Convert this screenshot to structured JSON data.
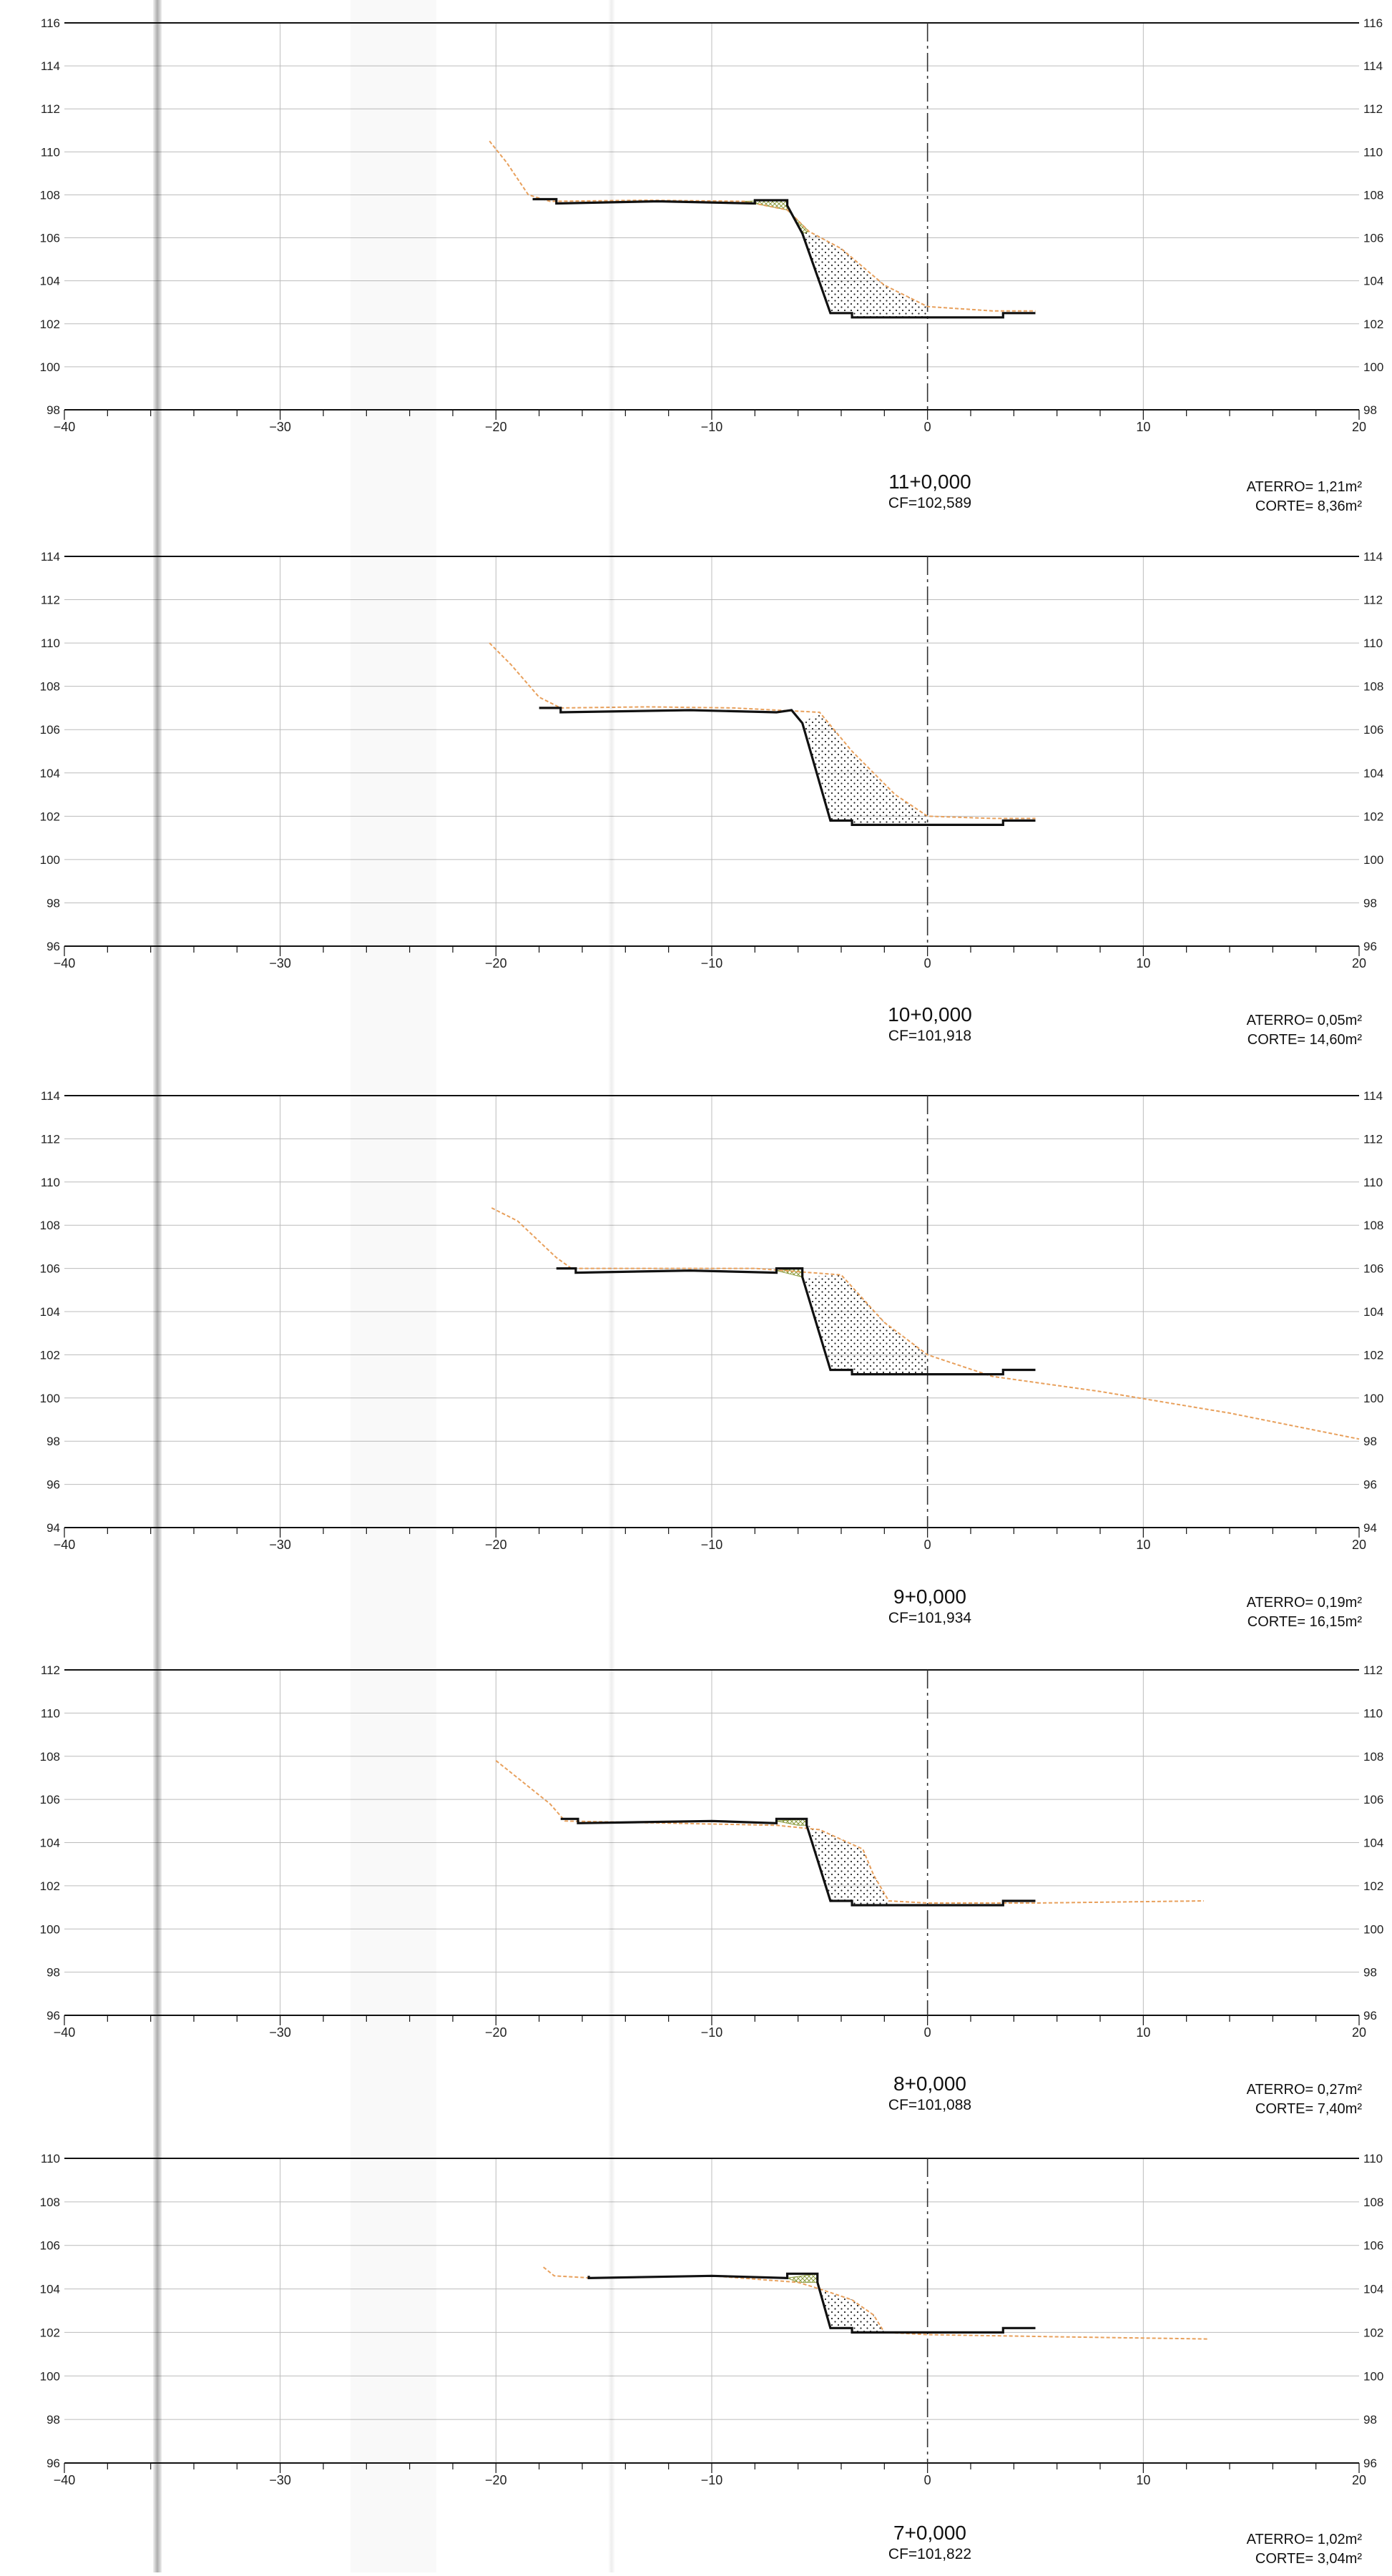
{
  "chart_data": [
    {
      "type": "line",
      "xlim": [
        -40,
        20
      ],
      "ylim": [
        98,
        116
      ],
      "x_ticks": [
        "−40",
        "−30",
        "−20",
        "−10",
        "0",
        "10",
        "20"
      ],
      "y_ticks": [
        "98",
        "100",
        "102",
        "104",
        "106",
        "108",
        "110",
        "112",
        "114",
        "116"
      ],
      "section": "11+0,000",
      "cf": "CF=102,589",
      "aterro": "ATERRO=  1,21m²",
      "corte": "CORTE=  8,36m²",
      "series": [
        {
          "kind": "terrain",
          "points": [
            [
              -20.3,
              110.5
            ],
            [
              -19.5,
              109.5
            ],
            [
              -18.5,
              108.0
            ],
            [
              -17.5,
              107.7
            ],
            [
              -13,
              107.75
            ],
            [
              -8.5,
              107.7
            ],
            [
              -6.5,
              107.3
            ],
            [
              -5.5,
              106.3
            ],
            [
              -4,
              105.5
            ],
            [
              -2,
              103.8
            ],
            [
              0,
              102.8
            ],
            [
              3,
              102.6
            ],
            [
              5,
              102.6
            ]
          ]
        },
        {
          "kind": "project",
          "points": [
            [
              -18.3,
              107.8
            ],
            [
              -17.2,
              107.8
            ],
            [
              -17.2,
              107.6
            ],
            [
              -12.5,
              107.7
            ],
            [
              -8,
              107.6
            ],
            [
              -8,
              107.75
            ],
            [
              -6.5,
              107.75
            ],
            [
              -6.5,
              107.5
            ],
            [
              -5.8,
              106.2
            ],
            [
              -4.5,
              102.5
            ],
            [
              -3.5,
              102.5
            ],
            [
              -3.5,
              102.3
            ],
            [
              3.5,
              102.3
            ],
            [
              3.5,
              102.5
            ],
            [
              5,
              102.5
            ]
          ]
        }
      ],
      "fill_area": [
        [
          -8.5,
          107.7
        ],
        [
          -6.5,
          107.75
        ],
        [
          -6.5,
          107.5
        ],
        [
          -5.8,
          106.2
        ],
        [
          -5.5,
          106.3
        ],
        [
          -6.5,
          107.3
        ]
      ],
      "cut_area": [
        [
          -5.8,
          106.2
        ],
        [
          -4.5,
          102.5
        ],
        [
          -3.5,
          102.5
        ],
        [
          -3.5,
          102.3
        ],
        [
          0,
          102.3
        ],
        [
          0,
          102.8
        ],
        [
          -2,
          103.8
        ],
        [
          -4,
          105.5
        ],
        [
          -5.5,
          106.3
        ]
      ]
    },
    {
      "type": "line",
      "xlim": [
        -40,
        20
      ],
      "ylim": [
        96,
        114
      ],
      "x_ticks": [
        "−40",
        "−30",
        "−20",
        "−10",
        "0",
        "10",
        "20"
      ],
      "y_ticks": [
        "96",
        "98",
        "100",
        "102",
        "104",
        "106",
        "108",
        "110",
        "112",
        "114"
      ],
      "section": "10+0,000",
      "cf": "CF=101,918",
      "aterro": "ATERRO=  0,05m²",
      "corte": "CORTE=  14,60m²",
      "series": [
        {
          "kind": "terrain",
          "points": [
            [
              -20.3,
              110.0
            ],
            [
              -19.3,
              109.0
            ],
            [
              -18,
              107.5
            ],
            [
              -17,
              107.0
            ],
            [
              -13,
              107.05
            ],
            [
              -9,
              107.0
            ],
            [
              -5,
              106.8
            ],
            [
              -3.5,
              105.0
            ],
            [
              -1.5,
              103.0
            ],
            [
              0,
              102.0
            ],
            [
              3,
              101.9
            ],
            [
              5,
              101.9
            ]
          ]
        },
        {
          "kind": "project",
          "points": [
            [
              -18,
              107.0
            ],
            [
              -17,
              107.0
            ],
            [
              -17,
              106.8
            ],
            [
              -11,
              106.9
            ],
            [
              -7,
              106.8
            ],
            [
              -6.3,
              106.9
            ],
            [
              -5.8,
              106.3
            ],
            [
              -4.5,
              101.8
            ],
            [
              -3.5,
              101.8
            ],
            [
              -3.5,
              101.6
            ],
            [
              3.5,
              101.6
            ],
            [
              3.5,
              101.8
            ],
            [
              5,
              101.8
            ]
          ]
        }
      ],
      "fill_area": [],
      "cut_area": [
        [
          -5.8,
          106.3
        ],
        [
          -4.5,
          101.8
        ],
        [
          -3.5,
          101.8
        ],
        [
          -3.5,
          101.6
        ],
        [
          0,
          101.6
        ],
        [
          0,
          102.0
        ],
        [
          -1.5,
          103.0
        ],
        [
          -3.5,
          105.0
        ],
        [
          -5,
          106.8
        ]
      ]
    },
    {
      "type": "line",
      "xlim": [
        -40,
        20
      ],
      "ylim": [
        94,
        114
      ],
      "x_ticks": [
        "−40",
        "−30",
        "−20",
        "−10",
        "0",
        "10",
        "20"
      ],
      "y_ticks": [
        "94",
        "96",
        "98",
        "100",
        "102",
        "104",
        "106",
        "108",
        "110",
        "112",
        "114"
      ],
      "section": "9+0,000",
      "cf": "CF=101,934",
      "aterro": "ATERRO=  0,19m²",
      "corte": "CORTE=  16,15m²",
      "series": [
        {
          "kind": "terrain",
          "points": [
            [
              -20.2,
              108.8
            ],
            [
              -19,
              108.2
            ],
            [
              -17.2,
              106.5
            ],
            [
              -16.5,
              106.0
            ],
            [
              -12,
              106.0
            ],
            [
              -8,
              106.0
            ],
            [
              -4,
              105.7
            ],
            [
              -2,
              103.5
            ],
            [
              0,
              102.0
            ],
            [
              3,
              101.0
            ],
            [
              8,
              100.3
            ],
            [
              14,
              99.3
            ],
            [
              20,
              98.1
            ]
          ]
        },
        {
          "kind": "project",
          "points": [
            [
              -17.2,
              106.0
            ],
            [
              -16.3,
              106.0
            ],
            [
              -16.3,
              105.8
            ],
            [
              -11,
              105.9
            ],
            [
              -7,
              105.8
            ],
            [
              -7,
              106.0
            ],
            [
              -5.8,
              106.0
            ],
            [
              -5.8,
              105.6
            ],
            [
              -4.5,
              101.3
            ],
            [
              -3.5,
              101.3
            ],
            [
              -3.5,
              101.1
            ],
            [
              3.5,
              101.1
            ],
            [
              3.5,
              101.3
            ],
            [
              5,
              101.3
            ]
          ]
        }
      ],
      "fill_area": [
        [
          -7,
          105.9
        ],
        [
          -5.8,
          106.0
        ],
        [
          -5.8,
          105.6
        ],
        [
          -6.2,
          105.7
        ]
      ],
      "cut_area": [
        [
          -5.8,
          105.6
        ],
        [
          -4.5,
          101.3
        ],
        [
          -3.5,
          101.3
        ],
        [
          -3.5,
          101.1
        ],
        [
          0,
          101.1
        ],
        [
          0,
          102.0
        ],
        [
          -2,
          103.5
        ],
        [
          -4,
          105.7
        ]
      ]
    },
    {
      "type": "line",
      "xlim": [
        -40,
        20
      ],
      "ylim": [
        96,
        112
      ],
      "x_ticks": [
        "−40",
        "−30",
        "−20",
        "−10",
        "0",
        "10",
        "20"
      ],
      "y_ticks": [
        "96",
        "98",
        "100",
        "102",
        "104",
        "106",
        "108",
        "110",
        "112"
      ],
      "section": "8+0,000",
      "cf": "CF=101,088",
      "aterro": "ATERRO=  0,27m²",
      "corte": "CORTE=  7,40m²",
      "series": [
        {
          "kind": "terrain",
          "points": [
            [
              -20,
              107.8
            ],
            [
              -19,
              107.0
            ],
            [
              -17.5,
              105.8
            ],
            [
              -16.8,
              105.0
            ],
            [
              -12,
              104.9
            ],
            [
              -7,
              104.8
            ],
            [
              -5,
              104.6
            ],
            [
              -3,
              103.7
            ],
            [
              -2.5,
              102.5
            ],
            [
              -1.8,
              101.3
            ],
            [
              0,
              101.2
            ],
            [
              5,
              101.2
            ],
            [
              12.8,
              101.3
            ]
          ]
        },
        {
          "kind": "project",
          "points": [
            [
              -17,
              105.1
            ],
            [
              -16.2,
              105.1
            ],
            [
              -16.2,
              104.9
            ],
            [
              -10,
              105.0
            ],
            [
              -7,
              104.9
            ],
            [
              -7,
              105.1
            ],
            [
              -5.6,
              105.1
            ],
            [
              -5.6,
              104.8
            ],
            [
              -4.5,
              101.3
            ],
            [
              -3.5,
              101.3
            ],
            [
              -3.5,
              101.1
            ],
            [
              3.5,
              101.1
            ],
            [
              3.5,
              101.3
            ],
            [
              5,
              101.3
            ]
          ]
        }
      ],
      "fill_area": [
        [
          -7,
          105.0
        ],
        [
          -5.6,
          105.1
        ],
        [
          -5.6,
          104.8
        ],
        [
          -6.0,
          104.8
        ]
      ],
      "cut_area": [
        [
          -5.6,
          104.8
        ],
        [
          -4.5,
          101.3
        ],
        [
          -3.5,
          101.3
        ],
        [
          -3.5,
          101.1
        ],
        [
          -1.8,
          101.1
        ],
        [
          -1.8,
          101.3
        ],
        [
          -2.5,
          102.5
        ],
        [
          -3,
          103.7
        ],
        [
          -5,
          104.6
        ]
      ]
    },
    {
      "type": "line",
      "xlim": [
        -40,
        20
      ],
      "ylim": [
        96,
        110
      ],
      "x_ticks": [
        "−40",
        "−30",
        "−20",
        "−10",
        "0",
        "10",
        "20"
      ],
      "y_ticks": [
        "96",
        "98",
        "100",
        "102",
        "104",
        "106",
        "108",
        "110"
      ],
      "section": "7+0,000",
      "cf": "CF=101,822",
      "aterro": "ATERRO=  1,02m²",
      "corte": "CORTE=  3,04m²",
      "series": [
        {
          "kind": "terrain",
          "points": [
            [
              -17.8,
              105.0
            ],
            [
              -17.3,
              104.6
            ],
            [
              -15.5,
              104.5
            ],
            [
              -10,
              104.6
            ],
            [
              -6,
              104.3
            ],
            [
              -5,
              104.0
            ],
            [
              -3.5,
              103.5
            ],
            [
              -2.5,
              102.8
            ],
            [
              -2,
              102.0
            ],
            [
              0,
              101.9
            ],
            [
              6,
              101.8
            ],
            [
              13,
              101.7
            ]
          ]
        },
        {
          "kind": "project",
          "points": [
            [
              -15.7,
              104.6
            ],
            [
              -15.7,
              104.5
            ],
            [
              -10,
              104.6
            ],
            [
              -6.5,
              104.5
            ],
            [
              -6.5,
              104.7
            ],
            [
              -5.1,
              104.7
            ],
            [
              -5.1,
              104.3
            ],
            [
              -4.5,
              102.2
            ],
            [
              -3.5,
              102.2
            ],
            [
              -3.5,
              102.0
            ],
            [
              3.5,
              102.0
            ],
            [
              3.5,
              102.2
            ],
            [
              5,
              102.2
            ]
          ]
        }
      ],
      "fill_area": [
        [
          -6.5,
          104.5
        ],
        [
          -5.1,
          104.7
        ],
        [
          -5.1,
          104.3
        ],
        [
          -6,
          104.3
        ]
      ],
      "cut_area": [
        [
          -5.1,
          104.3
        ],
        [
          -4.5,
          102.2
        ],
        [
          -3.5,
          102.2
        ],
        [
          -3.5,
          102.0
        ],
        [
          -2,
          102.0
        ],
        [
          -2.5,
          102.8
        ],
        [
          -3.5,
          103.5
        ],
        [
          -5,
          104.0
        ]
      ]
    }
  ],
  "colors": {
    "grid": "#bcbcbc",
    "frame": "#111111",
    "terrain": "#e8a05c",
    "project": "#111111",
    "fill_hatch": "#8a9a3c",
    "cut_dots": "#222222"
  }
}
